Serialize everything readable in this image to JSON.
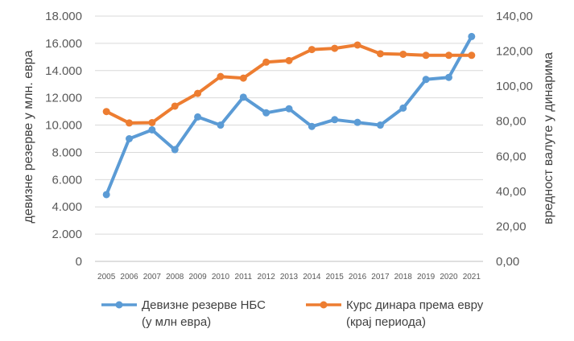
{
  "chart_data": {
    "type": "line",
    "categories": [
      "2005",
      "2006",
      "2007",
      "2008",
      "2009",
      "2010",
      "2011",
      "2012",
      "2013",
      "2014",
      "2015",
      "2016",
      "2017",
      "2018",
      "2019",
      "2020",
      "2021"
    ],
    "y_left": {
      "label": "девизне резерве у млн. евра",
      "range": [
        0,
        18000
      ],
      "ticks": [
        "0",
        "2.000",
        "4.000",
        "6.000",
        "8.000",
        "10.000",
        "12.000",
        "14.000",
        "16.000",
        "18.000"
      ]
    },
    "y_right": {
      "label": "вредност валуте у динарима",
      "range": [
        0,
        140
      ],
      "ticks": [
        "0,00",
        "20,00",
        "40,00",
        "60,00",
        "80,00",
        "100,00",
        "120,00",
        "140,00"
      ]
    },
    "series": [
      {
        "name": "Девизне резерве НБС (у млн евра)",
        "legend_lines": [
          "Девизне резерве НБС",
          "(у млн евра)"
        ],
        "axis": "left",
        "color": "#5B9BD5",
        "values": [
          4900,
          9000,
          9650,
          8200,
          10600,
          10000,
          12050,
          10900,
          11200,
          9900,
          10400,
          10200,
          10000,
          11250,
          13350,
          13500,
          16500
        ]
      },
      {
        "name": "Курс динара према евру (крај периода)",
        "legend_lines": [
          "Курс динара према евру",
          "(крај периода)"
        ],
        "axis": "right",
        "color": "#ED7D31",
        "values": [
          85.5,
          79.0,
          79.2,
          88.6,
          95.9,
          105.5,
          104.6,
          113.7,
          114.6,
          120.9,
          121.6,
          123.5,
          118.5,
          118.2,
          117.6,
          117.6,
          117.6
        ]
      }
    ],
    "grid": true,
    "legend_position": "bottom"
  }
}
